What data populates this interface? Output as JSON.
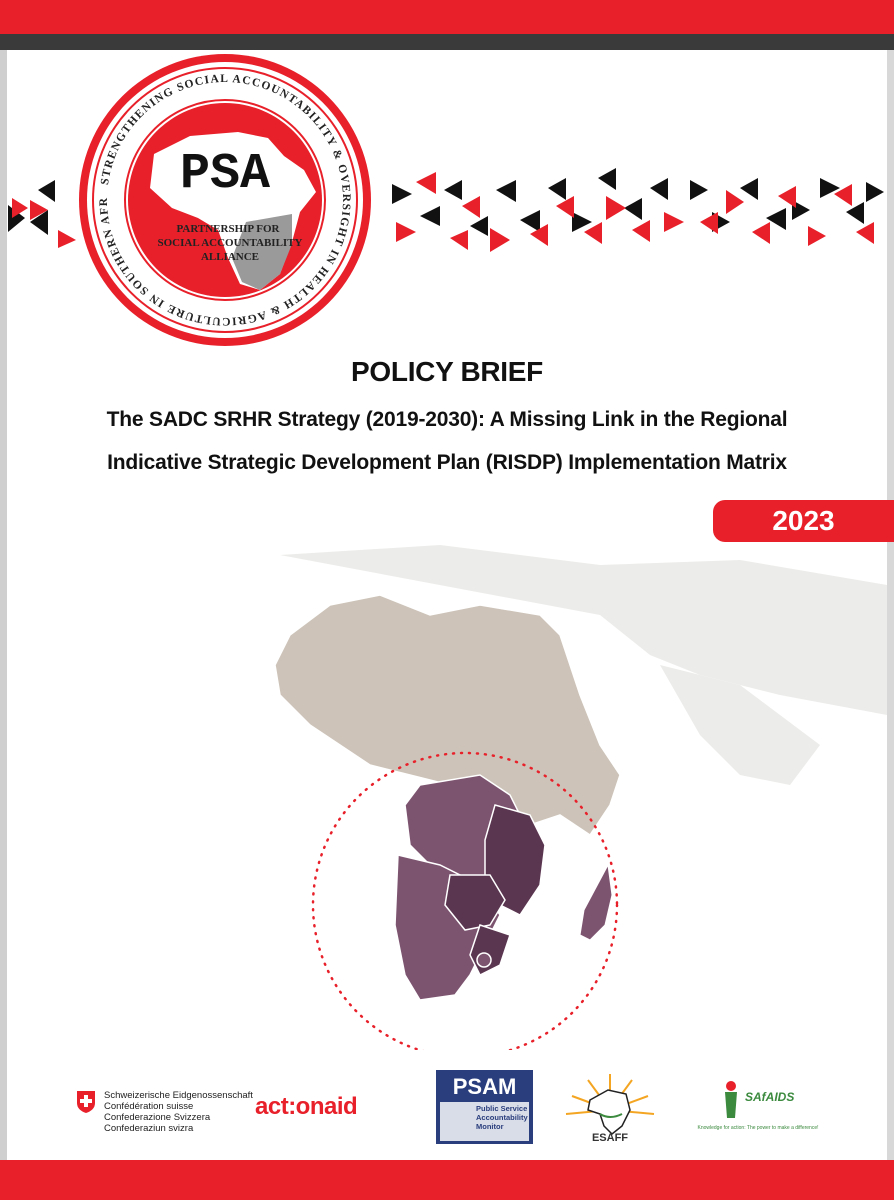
{
  "header": {
    "logo": {
      "abbr": "PSA",
      "ring_text": "STRENGTHENING SOCIAL ACCOUNTABILITY & OVERSIGHT IN HEALTH & AGRICULTURE IN SOUTHERN AFRICA",
      "line1": "PARTNERSHIP FOR",
      "line2": "SOCIAL ACCOUNTABILITY",
      "line3": "ALLIANCE"
    }
  },
  "title": {
    "doc_type": "POLICY BRIEF",
    "subtitle_line1": "The SADC SRHR Strategy (2019-2030): A Missing Link in the Regional",
    "subtitle_line2": "Indicative Strategic Development Plan (RISDP) Implementation Matrix",
    "year": "2023"
  },
  "partners": {
    "swiss": {
      "line1": "Schweizerische Eidgenossenschaft",
      "line2": "Confédération suisse",
      "line3": "Confederazione Svizzera",
      "line4": "Confederaziun svizra"
    },
    "actionaid": "act:onaid",
    "psam": {
      "abbr": "PSAM",
      "line1": "Public Service",
      "line2": "Accountability",
      "line3": "Monitor"
    },
    "esaff": "ESAFF",
    "safaids": {
      "name": "SAfAIDS",
      "tagline": "Knowledge for action: The power to make a difference!"
    }
  },
  "colors": {
    "accent_red": "#e8202a",
    "dark_bar": "#3a3a3a",
    "map_land": "#cdc3b8",
    "sadc_purple": "#7d5470",
    "sadc_dark": "#5b3650"
  }
}
